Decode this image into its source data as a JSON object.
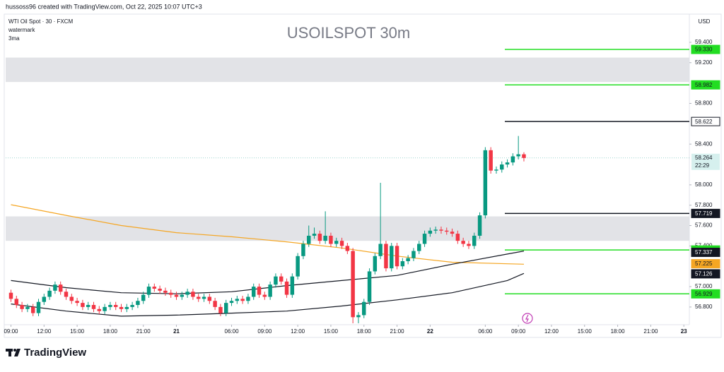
{
  "header": {
    "credit": "hussoss96 created with TradingView.com, Oct 22, 2025 10:07 UTC+3",
    "symbol": "WTI Oil Spot · 30 · FXCM",
    "line2": "watermark",
    "line3": "3ma",
    "currency": "USD"
  },
  "footer": {
    "logo": "TradingView"
  },
  "chart_data": {
    "type": "candlestick",
    "title": "USOILSPOT 30m",
    "up_color": "#089981",
    "down_color": "#f23645",
    "xlim": [
      -0.96,
      123
    ],
    "ylim": [
      56.626,
      59.677
    ],
    "xticks": [
      {
        "value": 0,
        "label": "09:00"
      },
      {
        "value": 6,
        "label": "12:00"
      },
      {
        "value": 12,
        "label": "15:00"
      },
      {
        "value": 18,
        "label": "18:00"
      },
      {
        "value": 24,
        "label": "21:00"
      },
      {
        "value": 30,
        "label": "21"
      },
      {
        "value": 40,
        "label": "06:00"
      },
      {
        "value": 46,
        "label": "09:00"
      },
      {
        "value": 52,
        "label": "12:00"
      },
      {
        "value": 58,
        "label": "15:00"
      },
      {
        "value": 64,
        "label": "18:00"
      },
      {
        "value": 70,
        "label": "21:00"
      },
      {
        "value": 76,
        "label": "22"
      },
      {
        "value": 86,
        "label": "06:00"
      },
      {
        "value": 92,
        "label": "09:00"
      },
      {
        "value": 98,
        "label": "12:00"
      },
      {
        "value": 104,
        "label": "15:00"
      },
      {
        "value": 110,
        "label": "18:00"
      },
      {
        "value": 116,
        "label": "21:00"
      },
      {
        "value": 122,
        "label": "23"
      }
    ],
    "yticks": [
      {
        "value": 59.4,
        "label": "59.400"
      },
      {
        "value": 59.2,
        "label": "59.200"
      },
      {
        "value": 58.8,
        "label": "58.800"
      },
      {
        "value": 58.4,
        "label": "58.400"
      },
      {
        "value": 58,
        "label": "58.000"
      },
      {
        "value": 57.8,
        "label": "57.800"
      },
      {
        "value": 57.6,
        "label": "57.600"
      },
      {
        "value": 57.4,
        "label": "57.400"
      },
      {
        "value": 57,
        "label": "57.000"
      },
      {
        "value": 56.8,
        "label": "56.800"
      }
    ],
    "open": [
      56.94,
      56.88,
      56.82,
      56.78,
      56.8,
      56.74,
      56.85,
      56.9,
      56.96,
      57.02,
      56.95,
      56.9,
      56.86,
      56.84,
      56.8,
      56.82,
      56.78,
      56.76,
      56.8,
      56.82,
      56.8,
      56.78,
      56.8,
      56.82,
      56.86,
      56.92,
      57,
      56.98,
      56.96,
      56.94,
      56.92,
      56.9,
      56.92,
      56.95,
      56.9,
      56.88,
      56.9,
      56.86,
      56.8,
      56.74,
      56.84,
      56.86,
      56.88,
      56.86,
      56.9,
      57,
      56.92,
      56.9,
      57.02,
      57.1,
      57.05,
      56.92,
      57.1,
      57.3,
      57.42,
      57.5,
      57.52,
      57.45,
      57.5,
      57.42,
      57.45,
      57.4,
      57.35,
      56.7,
      56.72,
      56.85,
      57.15,
      57.3,
      57.42,
      57.18,
      57.4,
      57.2,
      57.25,
      57.28,
      57.35,
      57.42,
      57.52,
      57.55,
      57.56,
      57.55,
      57.54,
      57.52,
      57.45,
      57.42,
      57.4,
      57.5,
      57.7,
      58.34,
      58.14,
      58.15,
      58.2,
      58.22,
      58.28,
      58.3
    ],
    "high": [
      56.97,
      56.91,
      56.85,
      56.83,
      56.83,
      56.88,
      56.93,
      56.99,
      57.05,
      57.05,
      56.98,
      56.93,
      56.89,
      56.87,
      56.85,
      56.85,
      56.81,
      56.83,
      56.85,
      56.85,
      56.83,
      56.83,
      56.85,
      56.89,
      56.95,
      57.03,
      57.03,
      57.01,
      56.99,
      56.97,
      56.95,
      56.95,
      56.98,
      56.98,
      56.93,
      56.93,
      56.93,
      56.89,
      56.83,
      56.87,
      56.89,
      56.91,
      56.91,
      56.93,
      57.03,
      57.03,
      56.95,
      57.05,
      57.13,
      57.13,
      57.08,
      57.13,
      57.33,
      57.45,
      57.6,
      57.58,
      57.55,
      57.74,
      57.53,
      57.48,
      57.48,
      57.43,
      57.38,
      56.75,
      56.88,
      57.18,
      57.33,
      58.02,
      57.45,
      57.43,
      57.43,
      57.28,
      57.31,
      57.38,
      57.45,
      57.55,
      57.58,
      57.59,
      57.59,
      57.58,
      57.57,
      57.55,
      57.48,
      57.45,
      57.53,
      57.73,
      58.37,
      58.37,
      58.18,
      58.23,
      58.25,
      58.31,
      58.48,
      58.32
    ],
    "low": [
      56.85,
      56.79,
      56.75,
      56.75,
      56.71,
      56.71,
      56.82,
      56.87,
      56.93,
      56.92,
      56.87,
      56.83,
      56.81,
      56.77,
      56.77,
      56.75,
      56.73,
      56.73,
      56.77,
      56.77,
      56.75,
      56.75,
      56.77,
      56.79,
      56.83,
      56.89,
      56.95,
      56.93,
      56.91,
      56.89,
      56.87,
      56.87,
      56.89,
      56.87,
      56.85,
      56.85,
      56.83,
      56.77,
      56.71,
      56.71,
      56.81,
      56.83,
      56.83,
      56.83,
      56.87,
      56.89,
      56.87,
      56.87,
      56.99,
      57.02,
      56.89,
      56.89,
      57.07,
      57.27,
      57.39,
      57.47,
      57.42,
      57.42,
      57.39,
      57.39,
      57.37,
      57.32,
      56.64,
      56.64,
      56.69,
      56.82,
      57.12,
      57.27,
      57.15,
      57.15,
      57.17,
      57.17,
      57.22,
      57.25,
      57.32,
      57.39,
      57.49,
      57.52,
      57.52,
      57.51,
      57.49,
      57.42,
      57.39,
      57.37,
      57.37,
      57.47,
      57.67,
      58.11,
      58.11,
      58.12,
      58.17,
      58.19,
      58.25,
      58.23
    ],
    "close": [
      56.88,
      56.82,
      56.78,
      56.8,
      56.74,
      56.85,
      56.9,
      56.96,
      57.02,
      56.95,
      56.9,
      56.86,
      56.84,
      56.8,
      56.82,
      56.78,
      56.76,
      56.8,
      56.82,
      56.8,
      56.78,
      56.8,
      56.82,
      56.86,
      56.92,
      57,
      56.98,
      56.96,
      56.94,
      56.92,
      56.9,
      56.92,
      56.95,
      56.9,
      56.88,
      56.9,
      56.86,
      56.8,
      56.74,
      56.84,
      56.86,
      56.88,
      56.86,
      56.9,
      57,
      56.92,
      56.9,
      57.02,
      57.1,
      57.05,
      56.92,
      57.1,
      57.3,
      57.42,
      57.5,
      57.52,
      57.45,
      57.5,
      57.42,
      57.45,
      57.4,
      57.35,
      56.7,
      56.72,
      56.85,
      57.15,
      57.3,
      57.42,
      57.18,
      57.4,
      57.2,
      57.25,
      57.28,
      57.35,
      57.42,
      57.52,
      57.55,
      57.56,
      57.55,
      57.54,
      57.52,
      57.45,
      57.42,
      57.4,
      57.5,
      57.7,
      58.34,
      58.14,
      58.15,
      58.2,
      58.22,
      58.28,
      58.3,
      58.264
    ],
    "indicators": [
      {
        "color": "#f5a623",
        "x": [
          0,
          10,
          20,
          30,
          40,
          50,
          60,
          70,
          80,
          93
        ],
        "values": [
          57.805,
          57.7,
          57.6,
          57.53,
          57.49,
          57.44,
          57.38,
          57.3,
          57.24,
          57.22
        ]
      },
      {
        "color": "#131722",
        "x": [
          0,
          10,
          20,
          30,
          40,
          50,
          60,
          70,
          80,
          90,
          93
        ],
        "values": [
          57.06,
          56.99,
          56.94,
          56.93,
          56.95,
          57.01,
          57.06,
          57.11,
          57.22,
          57.32,
          57.35
        ]
      },
      {
        "color": "#131722",
        "x": [
          0,
          10,
          20,
          30,
          40,
          50,
          60,
          70,
          80,
          90,
          93
        ],
        "values": [
          56.83,
          56.76,
          56.71,
          56.72,
          56.74,
          56.76,
          56.81,
          56.87,
          56.94,
          57.06,
          57.13
        ]
      }
    ],
    "zones": [
      [
        59.25,
        59.01
      ],
      [
        57.69,
        57.45
      ]
    ],
    "levels": [
      {
        "value": 59.33,
        "label": "59.330",
        "color": "#22dd22"
      },
      {
        "value": 58.982,
        "label": "58.982",
        "color": "#22dd22"
      },
      {
        "value": 58.622,
        "label": "58.622",
        "color": "#131722"
      },
      {
        "value": 57.719,
        "label": "57.719",
        "color": "#131722"
      },
      {
        "value": 57.36,
        "label": "57.360",
        "color": "#22dd22"
      },
      {
        "value": 56.929,
        "label": "56.929",
        "color": "#22dd22"
      }
    ],
    "price_tags": [
      {
        "value": 57.337,
        "label": "57.337",
        "color": "#131722"
      },
      {
        "value": 57.225,
        "label": "57.225",
        "color": "#f5a623"
      },
      {
        "value": 57.126,
        "label": "57.126",
        "color": "#131722"
      }
    ],
    "last_price": {
      "value": 58.264,
      "label": "58.264",
      "time": "22:29",
      "color": "#d6f0ee"
    }
  }
}
